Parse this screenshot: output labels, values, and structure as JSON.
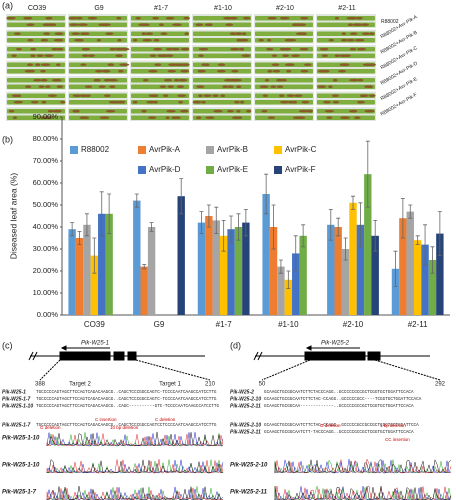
{
  "panel_labels": [
    "(a)",
    "(b)",
    "(c)",
    "(d)"
  ],
  "panel_a": {
    "columns": [
      "CO39",
      "G9",
      "#1-7",
      "#1-10",
      "#2-10",
      "#2-11"
    ],
    "rows": [
      "R88002",
      "R88002+Avr-Pik-A",
      "R88002+Avr-Pik-B",
      "R88002+Avr-Pik-C",
      "R88002+Avr-Pik-D",
      "R88002+Avr-Pik-E",
      "R88002+Avr-Pik-F"
    ]
  },
  "chart_data": {
    "type": "bar",
    "y_label": "Diseased leaf area (%)",
    "categories": [
      "CO39",
      "G9",
      "#1-7",
      "#1-10",
      "#2-10",
      "#2-11"
    ],
    "ylim": [
      0,
      90
    ],
    "yticks": [
      {
        "value": 0,
        "label": "0.00%"
      },
      {
        "value": 10,
        "label": "10.00%"
      },
      {
        "value": 20,
        "label": "20.00%"
      },
      {
        "value": 30,
        "label": "30.00%"
      },
      {
        "value": 40,
        "label": "40.00%"
      },
      {
        "value": 50,
        "label": "50.00%"
      },
      {
        "value": 60,
        "label": "60.00%"
      },
      {
        "value": 70,
        "label": "70.00%"
      },
      {
        "value": 80,
        "label": "80.00%"
      },
      {
        "value": 90,
        "label": "90.00%"
      }
    ],
    "series": [
      {
        "name": "R88002",
        "color": "#5b9bd5",
        "values": [
          39,
          52,
          42,
          55,
          41,
          21
        ],
        "errors": [
          3,
          3,
          5,
          9,
          7,
          8
        ]
      },
      {
        "name": "AvrPik-A",
        "color": "#ed7d31",
        "values": [
          35,
          22,
          45,
          40,
          40,
          44
        ],
        "errors": [
          3,
          1,
          5,
          10,
          4,
          9
        ]
      },
      {
        "name": "AvrPik-B",
        "color": "#a5a5a5",
        "values": [
          41,
          40,
          43,
          22,
          30,
          47
        ],
        "errors": [
          5,
          2,
          6,
          3,
          5,
          3
        ]
      },
      {
        "name": "AvrPik-C",
        "color": "#ffc000",
        "values": [
          27,
          null,
          36,
          16,
          51,
          34
        ],
        "errors": [
          8,
          null,
          7,
          4,
          3,
          2
        ]
      },
      {
        "name": "AvrPik-D",
        "color": "#4472c4",
        "values": [
          46,
          null,
          39,
          28,
          41,
          32
        ],
        "errors": [
          10,
          null,
          6,
          8,
          10,
          9
        ]
      },
      {
        "name": "AvrPik-E",
        "color": "#70ad47",
        "values": [
          46,
          null,
          40,
          36,
          64,
          25
        ],
        "errors": [
          9,
          null,
          6,
          5,
          15,
          6
        ]
      },
      {
        "name": "AvrPik-F",
        "color": "#264478",
        "values": [
          null,
          54,
          42,
          null,
          36,
          37
        ],
        "errors": [
          null,
          8,
          6,
          null,
          7,
          10
        ]
      }
    ]
  },
  "panel_c": {
    "gene": "Pik-W25-1",
    "start": "388",
    "end": "210",
    "targets": [
      "Target 2",
      "Target 1"
    ],
    "rows": [
      {
        "label": "Pik-W25-1",
        "seq": "TGCCCCCAGTAGCTTCCAGTCAGACAAGCG..CAGCTCCCGGCCAGTC-TCCCCAATCAAGCCATCCTTG"
      },
      {
        "label": "Pik-W25-1-7",
        "seq": "TGCCCCCAGTAGCTTCCAGTCAGACAAGCG..CAGCTCCCGGCCAGTC-TCCCCAATCAAGCCATCCTTG"
      },
      {
        "label": "Pik-W25-1-10",
        "seq": "TGCCCCCAGTAGCTTCCAGTCAGACAAGCG..CAGC----------GTC-TCCCCAATCAAGCCATCCTTG"
      },
      {
        "label": "Pik-W25-1-7",
        "seq": "TGCCCCCAGTAGCTTCCAGTCAGACAAGCG..CAGCTCCCGGCCAGTCCTCCCCAATCAAGCCATCCTTG"
      }
    ],
    "notes": [
      "C insertion",
      "G deletion",
      "10 bp deletion",
      "C deletion"
    ],
    "traces": [
      "Pik-W25-1-10",
      "Pik-W25-1-7",
      "Pik-W25-1-10"
    ]
  },
  "panel_d": {
    "gene": "Pik-W25-2",
    "start": "50",
    "end": "292",
    "rows": [
      {
        "label": "Pik-W25-2",
        "seq": "GCAAGCTGCGGCAATCTTCTACCCAGG..GCCCCCGCCGCTCGGTGCTGGATTCCACA"
      },
      {
        "label": "Pik-W25-2-10",
        "seq": "GCAAGCTGCGGCAATCTTCTAC-CCAGG..GCCCCCGCC----TCGGTGCTGGATTCCACA"
      },
      {
        "label": "Pik-W25-2-11",
        "seq": "GCAAGCTGCGGCAA-------------..GCCCCCGCCGCTCGGTGCTGGATTCCACA"
      },
      {
        "label": "Pik-W25-2-10",
        "seq": "GCAAGCTGCGGCAATCTTCTAC-CCAGG..GCCCCCGCCGCCGCTCGGTGCTGGATTCCA"
      },
      {
        "label": "Pik-W25-2-11",
        "seq": "GCAAGCTGCGGCAATCTT-TACCCAGG..GCCCCCGCCGCTCGGTGCTGGATTCCACA"
      }
    ],
    "notes": [
      "G deletion",
      "1 bp deletion",
      "CC insertion"
    ],
    "traces": [
      "Pik-W25-2-10",
      "Pik-W25-2-11"
    ]
  }
}
